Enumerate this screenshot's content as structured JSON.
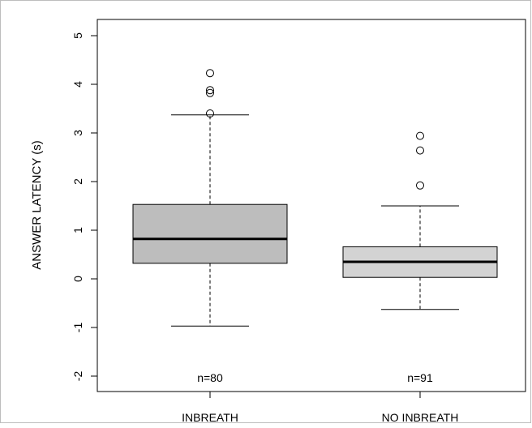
{
  "chart_data": {
    "type": "box",
    "ylabel": "ANSWER LATENCY (s)",
    "xlabel": "",
    "title": "",
    "ylim": [
      -2.3,
      5.3
    ],
    "yticks": [
      -2,
      -1,
      0,
      1,
      2,
      3,
      4,
      5
    ],
    "ytick_labels": [
      "-2",
      "-1",
      "0",
      "1",
      "2",
      "3",
      "4",
      "5"
    ],
    "grid": false,
    "groups": [
      {
        "label": "INBREATH",
        "n_label": "n=80",
        "fill": "#bdbdbd",
        "whisker_low": -0.97,
        "q1": 0.32,
        "median": 0.82,
        "q3": 1.53,
        "whisker_high": 3.37,
        "outliers": [
          3.4,
          3.82,
          3.88,
          4.23
        ]
      },
      {
        "label": "NO INBREATH",
        "n_label": "n=91",
        "fill": "#d3d3d3",
        "whisker_low": -0.63,
        "q1": 0.03,
        "median": 0.35,
        "q3": 0.66,
        "whisker_high": 1.5,
        "outliers": [
          1.92,
          2.64,
          2.94
        ]
      }
    ]
  }
}
